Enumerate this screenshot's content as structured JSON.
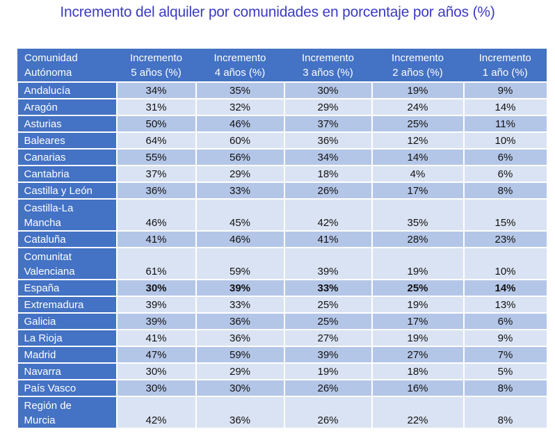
{
  "chart_data": {
    "type": "table",
    "title": "Incremento del alquiler por comunidades en porcentaje por años (%)",
    "columns": [
      "Comunidad Autónoma",
      "Incremento 5 años (%)",
      "Incremento 4 años (%)",
      "Incremento 3 años (%)",
      "Incremento 2 años (%)",
      "Incremento 1 año (%)"
    ],
    "rows": [
      {
        "name": "Andalucía",
        "values": [
          "34%",
          "35%",
          "30%",
          "19%",
          "9%"
        ]
      },
      {
        "name": "Aragón",
        "values": [
          "31%",
          "32%",
          "29%",
          "24%",
          "14%"
        ]
      },
      {
        "name": "Asturias",
        "values": [
          "50%",
          "46%",
          "37%",
          "25%",
          "11%"
        ]
      },
      {
        "name": "Baleares",
        "values": [
          "64%",
          "60%",
          "36%",
          "12%",
          "10%"
        ]
      },
      {
        "name": "Canarias",
        "values": [
          "55%",
          "56%",
          "34%",
          "14%",
          "6%"
        ]
      },
      {
        "name": "Cantabria",
        "values": [
          "37%",
          "29%",
          "18%",
          "4%",
          "6%"
        ]
      },
      {
        "name": "Castilla y León",
        "values": [
          "36%",
          "33%",
          "26%",
          "17%",
          "8%"
        ]
      },
      {
        "name": "Castilla-La Mancha",
        "values": [
          "46%",
          "45%",
          "42%",
          "35%",
          "15%"
        ]
      },
      {
        "name": "Cataluña",
        "values": [
          "41%",
          "46%",
          "41%",
          "28%",
          "23%"
        ]
      },
      {
        "name": "Comunitat Valenciana",
        "values": [
          "61%",
          "59%",
          "39%",
          "19%",
          "10%"
        ]
      },
      {
        "name": "España",
        "values": [
          "30%",
          "39%",
          "33%",
          "25%",
          "14%"
        ],
        "bold": true
      },
      {
        "name": "Extremadura",
        "values": [
          "39%",
          "33%",
          "25%",
          "19%",
          "13%"
        ]
      },
      {
        "name": "Galicia",
        "values": [
          "39%",
          "36%",
          "25%",
          "17%",
          "6%"
        ]
      },
      {
        "name": "La Rioja",
        "values": [
          "41%",
          "36%",
          "27%",
          "19%",
          "9%"
        ]
      },
      {
        "name": "Madrid",
        "values": [
          "47%",
          "59%",
          "39%",
          "27%",
          "7%"
        ]
      },
      {
        "name": "Navarra",
        "values": [
          "30%",
          "29%",
          "19%",
          "18%",
          "5%"
        ]
      },
      {
        "name": "País Vasco",
        "values": [
          "30%",
          "30%",
          "26%",
          "16%",
          "8%"
        ]
      },
      {
        "name": "Región de Murcia",
        "values": [
          "42%",
          "36%",
          "26%",
          "22%",
          "8%"
        ]
      }
    ],
    "colors": {
      "header": "#4472c4",
      "row_dark": "#b4c6e7",
      "row_light": "#dae3f3",
      "title": "#3b3bc4"
    }
  }
}
